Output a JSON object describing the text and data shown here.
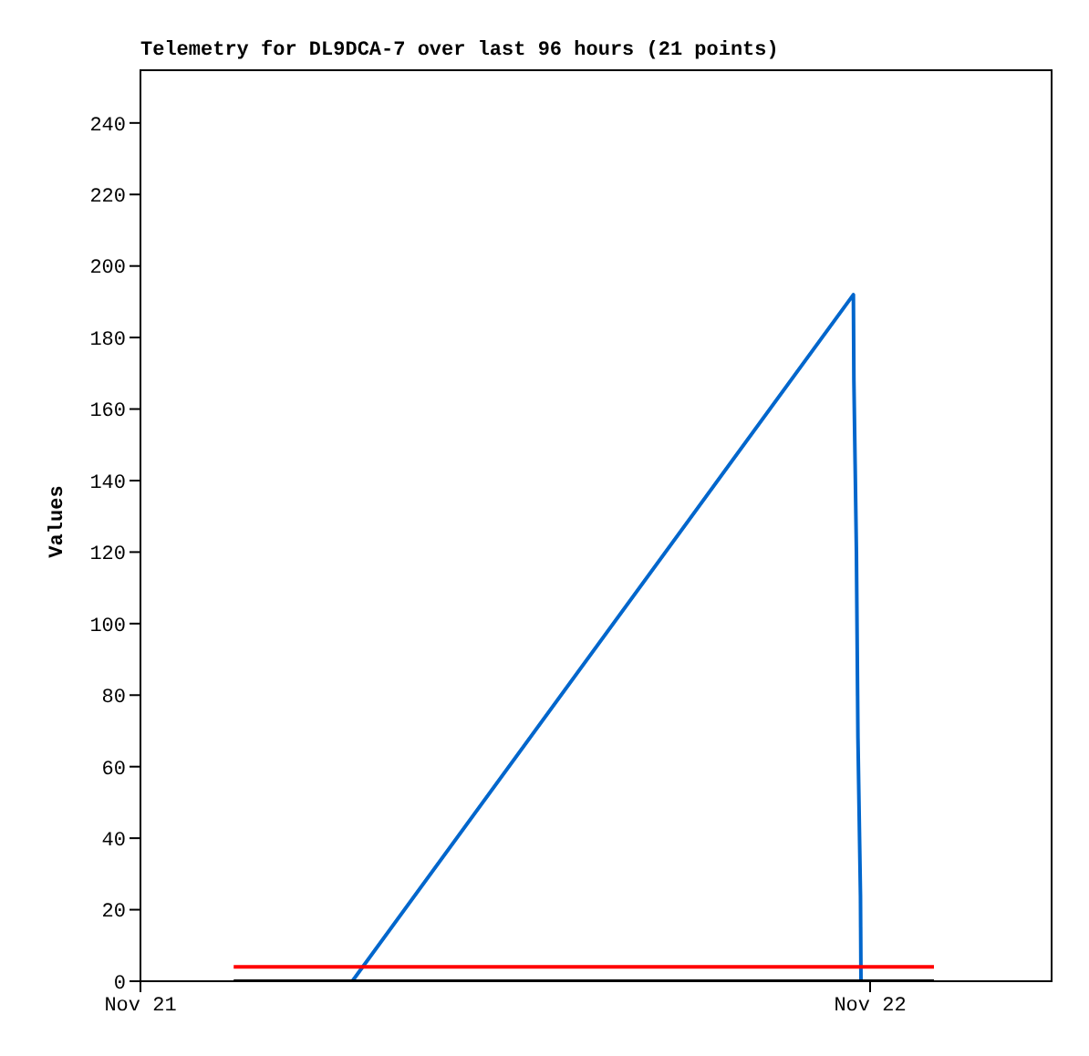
{
  "chart_data": {
    "type": "line",
    "title": "Telemetry for DL9DCA-7 over last 96 hours (21 points)",
    "ylabel": "Values",
    "xlim": [
      "--11-21",
      "--11-22T06:00"
    ],
    "xticks": [
      {
        "value": "--11-21",
        "label": "Nov 21"
      },
      {
        "value": "--11-22",
        "label": "Nov 22"
      }
    ],
    "ylim": [
      0,
      255
    ],
    "yticks": [
      0,
      20,
      40,
      60,
      80,
      100,
      120,
      140,
      160,
      180,
      200,
      220,
      240
    ],
    "marker": "none",
    "line_style": "solid",
    "series": [
      {
        "color": "#0066cc",
        "x": [
          "--11-21T06:58",
          "--11-21T23:27",
          "--11-21T23:28",
          "--11-21T23:33",
          "--11-21T23:36",
          "--11-21T23:41",
          "--11-21T23:42"
        ],
        "values": [
          0,
          192,
          168,
          120,
          68,
          24,
          0
        ]
      },
      {
        "color": "#ff0000",
        "x": [
          "--11-21T03:04",
          "--11-22T02:06"
        ],
        "values": [
          4,
          4
        ]
      },
      {
        "color": "#000000",
        "x": [
          "--11-21T03:04",
          "--11-22T02:06"
        ],
        "values": [
          0,
          0
        ]
      }
    ]
  }
}
